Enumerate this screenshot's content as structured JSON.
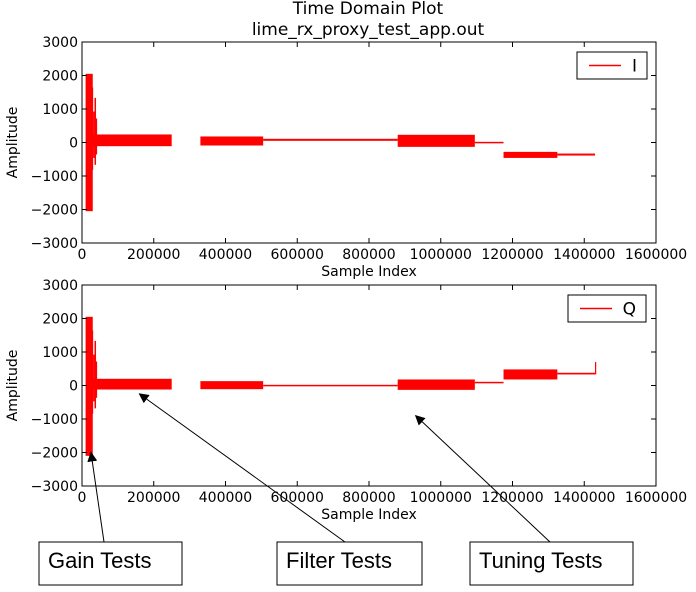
{
  "figure": {
    "title": "Time Domain Plot",
    "subtitle": "lime_rx_proxy_test_app.out"
  },
  "chart_data": [
    {
      "type": "line",
      "xlabel": "Sample Index",
      "ylabel": "Amplitude",
      "xlim": [
        0,
        1600000
      ],
      "ylim": [
        -3000,
        3000
      ],
      "xticks": [
        "0",
        "200000",
        "400000",
        "600000",
        "800000",
        "1000000",
        "1200000",
        "1400000",
        "1600000"
      ],
      "yticks": [
        "3000",
        "2000",
        "1000",
        "0",
        "−1000",
        "−2000",
        "−3000"
      ],
      "legend": {
        "position": "top-right"
      },
      "series": [
        {
          "name": "I",
          "color": "#ff0000",
          "segments": [
            {
              "x": [
                10000,
                30000
              ],
              "y_min": -2050,
              "y_max": 2050
            },
            {
              "x": [
                30000,
                250000
              ],
              "y_min": -110,
              "y_max": 240
            },
            {
              "x": [
                330000,
                505000
              ],
              "y_min": -90,
              "y_max": 180
            },
            {
              "x": [
                505000,
                880000
              ],
              "y_min": 50,
              "y_max": 110
            },
            {
              "x": [
                880000,
                1095000
              ],
              "y_min": -130,
              "y_max": 230
            },
            {
              "x": [
                1095000,
                1175000
              ],
              "y_min": -20,
              "y_max": 20
            },
            {
              "x": [
                1175000,
                1325000
              ],
              "y_min": -460,
              "y_max": -280
            },
            {
              "x": [
                1325000,
                1430000
              ],
              "y_min": -390,
              "y_max": -330
            }
          ]
        }
      ]
    },
    {
      "type": "line",
      "xlabel": "Sample Index",
      "ylabel": "Amplitude",
      "xlim": [
        0,
        1600000
      ],
      "ylim": [
        -3000,
        3000
      ],
      "xticks": [
        "0",
        "200000",
        "400000",
        "600000",
        "800000",
        "1000000",
        "1200000",
        "1400000",
        "1600000"
      ],
      "yticks": [
        "3000",
        "2000",
        "1000",
        "0",
        "−1000",
        "−2000",
        "−3000"
      ],
      "legend": {
        "position": "top-right"
      },
      "series": [
        {
          "name": "Q",
          "color": "#ff0000",
          "segments": [
            {
              "x": [
                10000,
                30000
              ],
              "y_min": -2100,
              "y_max": 2050
            },
            {
              "x": [
                30000,
                250000
              ],
              "y_min": -120,
              "y_max": 200
            },
            {
              "x": [
                330000,
                505000
              ],
              "y_min": -110,
              "y_max": 130
            },
            {
              "x": [
                505000,
                880000
              ],
              "y_min": -20,
              "y_max": 20
            },
            {
              "x": [
                880000,
                1095000
              ],
              "y_min": -130,
              "y_max": 180
            },
            {
              "x": [
                1095000,
                1175000
              ],
              "y_min": 70,
              "y_max": 110
            },
            {
              "x": [
                1175000,
                1325000
              ],
              "y_min": 180,
              "y_max": 480
            },
            {
              "x": [
                1325000,
                1430000
              ],
              "y_min": 330,
              "y_max": 380
            },
            {
              "x": [
                1430000,
                1432000
              ],
              "y_min": 330,
              "y_max": 700
            }
          ]
        }
      ]
    }
  ],
  "annotations": [
    {
      "label": "Gain Tests",
      "target": {
        "x": 25000,
        "y": -2000
      }
    },
    {
      "label": "Filter Tests",
      "target": {
        "x": 160000,
        "y": -250
      }
    },
    {
      "label": "Tuning Tests",
      "target": {
        "x": 930000,
        "y": -900
      }
    }
  ]
}
